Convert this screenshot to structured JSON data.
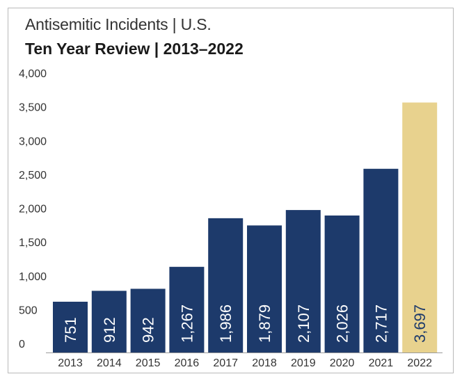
{
  "header": {
    "subtitle": "Antisemitic Incidents | U.S.",
    "title": "Ten Year Review | 2013–2022"
  },
  "colors": {
    "bar": "#1d3a6b",
    "highlight": "#e8d28e",
    "label_on_dark": "#ffffff",
    "label_on_highlight": "#1d3a6b"
  },
  "chart_data": {
    "type": "bar",
    "title": "Ten Year Review | 2013–2022",
    "subtitle": "Antisemitic Incidents | U.S.",
    "xlabel": "",
    "ylabel": "",
    "categories": [
      "2013",
      "2014",
      "2015",
      "2016",
      "2017",
      "2018",
      "2019",
      "2020",
      "2021",
      "2022"
    ],
    "values": [
      751,
      912,
      942,
      1267,
      1986,
      1879,
      2107,
      2026,
      2717,
      3697
    ],
    "data_labels": [
      "751",
      "912",
      "942",
      "1,267",
      "1,986",
      "1,879",
      "2,107",
      "2,026",
      "2,717",
      "3,697"
    ],
    "ylim": [
      0,
      4000
    ],
    "yticks": [
      0,
      500,
      1000,
      1500,
      2000,
      2500,
      3000,
      3500,
      4000
    ],
    "ytick_labels": [
      "0",
      "500",
      "1,000",
      "1,500",
      "2,000",
      "2,500",
      "3,000",
      "3,500",
      "4,000"
    ],
    "highlight_category": "2022",
    "grid": false,
    "legend": "none",
    "data_label_orientation": "vertical"
  }
}
